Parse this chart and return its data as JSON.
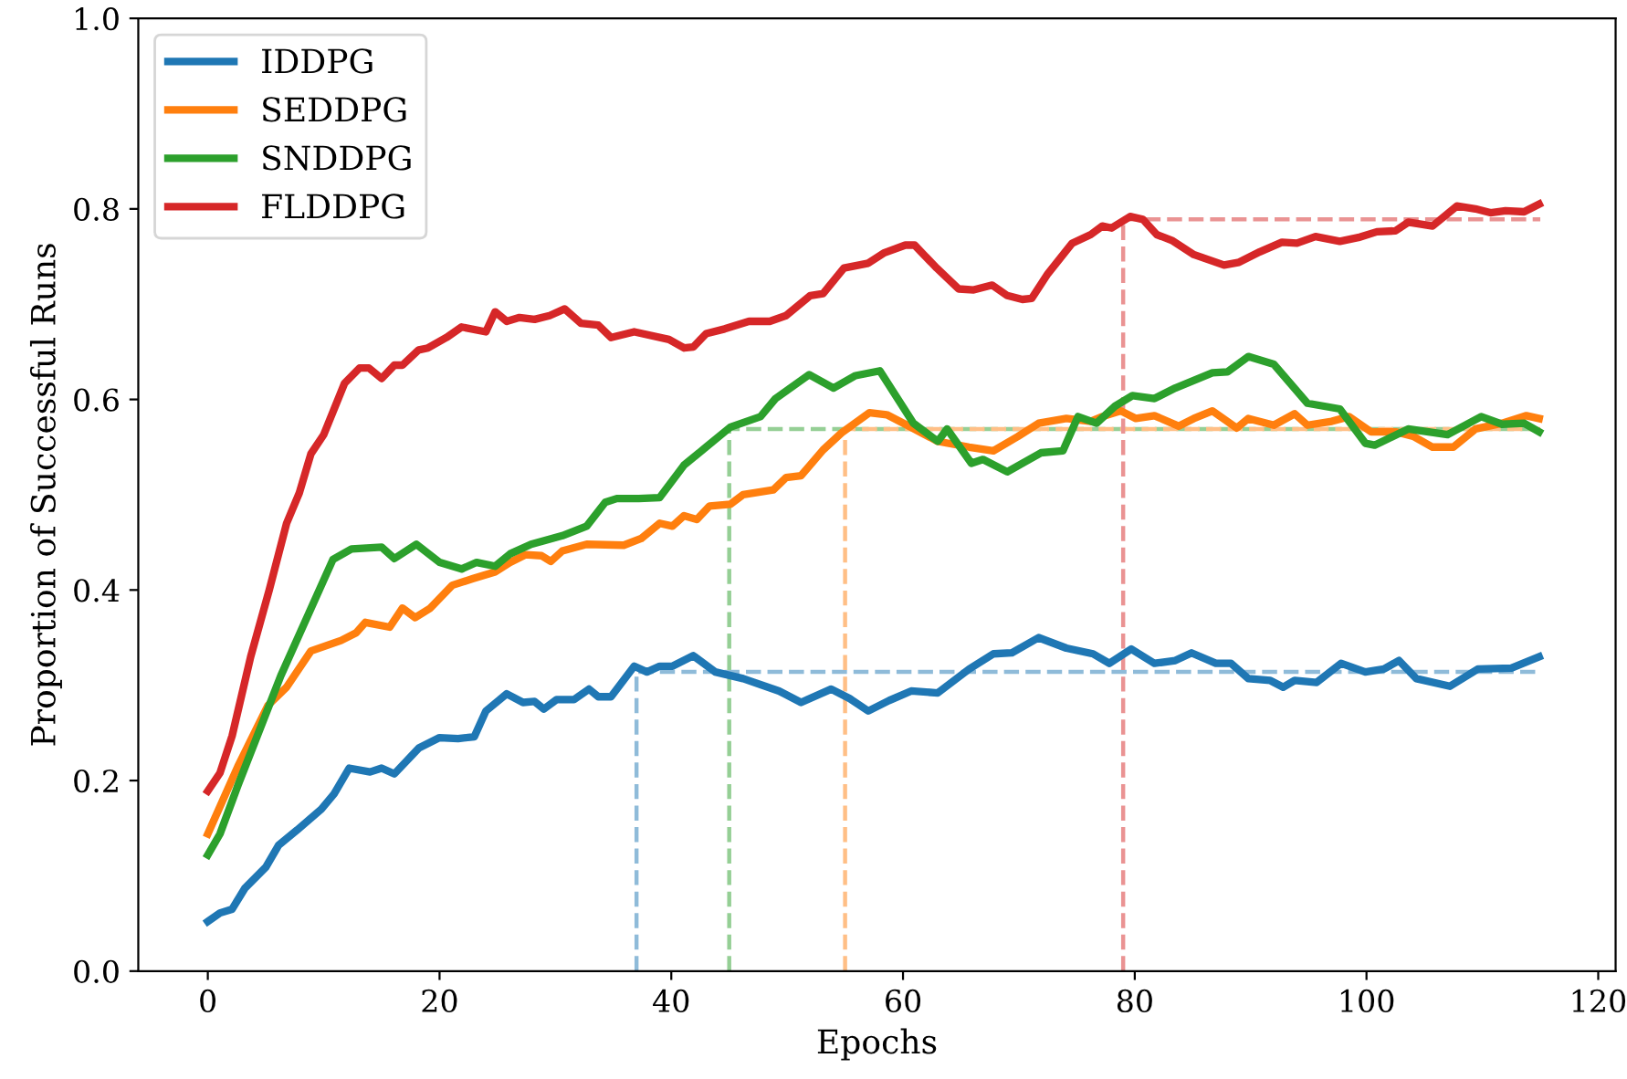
{
  "chart_data": {
    "type": "line",
    "xlabel": "Epochs",
    "ylabel": "Proportion of Successful Runs",
    "xlim": [
      -6,
      121.5
    ],
    "ylim": [
      0,
      1
    ],
    "xticks": [
      0,
      20,
      40,
      60,
      80,
      100,
      120
    ],
    "yticks": [
      {
        "value": 0,
        "label": "0.0"
      },
      0.2,
      0.4,
      0.6,
      0.8,
      {
        "value": 1,
        "label": "1.0"
      }
    ],
    "grid": false,
    "legend": "top left",
    "line_style": "solid",
    "marker": "none",
    "series": [
      {
        "name": "IDDPG",
        "color": "#1f77b4",
        "x": [
          0,
          1.05,
          2.1,
          3.2,
          5,
          6.1,
          7.7,
          9.8,
          10.9,
          12.2,
          14,
          15,
          16.1,
          18.2,
          20,
          21.6,
          23,
          24,
          25.8,
          27.2,
          28.2,
          29,
          30.1,
          31.6,
          32.9,
          33.7,
          34.8,
          36.8,
          37.9,
          39,
          40.1,
          41.9,
          43.8,
          46.2,
          49.3,
          51.2,
          53.8,
          55.4,
          57,
          58.8,
          60.7,
          63,
          65.7,
          67.8,
          69.4,
          71.7,
          74.1,
          76.4,
          77.8,
          79.7,
          81.7,
          83.5,
          84.9,
          87,
          88.3,
          89.8,
          91.7,
          92.8,
          93.8,
          95.7,
          97.8,
          99.9,
          101.5,
          102.8,
          104.3,
          107.2,
          109.6,
          112.5,
          114.9
        ],
        "values": [
          0.052,
          0.061,
          0.065,
          0.087,
          0.109,
          0.132,
          0.148,
          0.17,
          0.186,
          0.213,
          0.209,
          0.213,
          0.207,
          0.234,
          0.245,
          0.244,
          0.246,
          0.273,
          0.291,
          0.282,
          0.283,
          0.275,
          0.285,
          0.285,
          0.296,
          0.288,
          0.288,
          0.32,
          0.314,
          0.32,
          0.32,
          0.331,
          0.314,
          0.307,
          0.294,
          0.282,
          0.296,
          0.286,
          0.273,
          0.284,
          0.294,
          0.292,
          0.317,
          0.333,
          0.334,
          0.35,
          0.339,
          0.333,
          0.323,
          0.338,
          0.323,
          0.326,
          0.334,
          0.323,
          0.323,
          0.307,
          0.305,
          0.298,
          0.305,
          0.303,
          0.323,
          0.314,
          0.317,
          0.326,
          0.307,
          0.299,
          0.317,
          0.318,
          0.33
        ]
      },
      {
        "name": "SEDDPG",
        "color": "#ff7f0e",
        "x": [
          0,
          2.6,
          5.2,
          6.8,
          8.9,
          11.5,
          12.8,
          13.6,
          15.7,
          16.8,
          17.9,
          19.2,
          21.1,
          22.9,
          24.8,
          26.1,
          27.4,
          28.8,
          29.6,
          30.6,
          32.7,
          35.9,
          37.4,
          39,
          40.1,
          41.1,
          42.2,
          43.3,
          45.1,
          46.2,
          48.8,
          49.9,
          51.2,
          53.1,
          54.7,
          57.1,
          58.6,
          60.5,
          63,
          65.7,
          67.8,
          69.9,
          71.7,
          74.1,
          76.2,
          77.2,
          78.8,
          80.1,
          81.7,
          83.8,
          85.1,
          86.7,
          88.8,
          89.8,
          92,
          93.8,
          94.9,
          97,
          98.5,
          100.4,
          102.5,
          104.1,
          105.7,
          107.5,
          109.4,
          111.7,
          113.8,
          114.9
        ],
        "values": [
          0.144,
          0.215,
          0.279,
          0.298,
          0.336,
          0.347,
          0.355,
          0.366,
          0.361,
          0.381,
          0.371,
          0.381,
          0.405,
          0.412,
          0.419,
          0.429,
          0.437,
          0.436,
          0.43,
          0.441,
          0.448,
          0.447,
          0.454,
          0.47,
          0.467,
          0.478,
          0.474,
          0.488,
          0.49,
          0.5,
          0.505,
          0.518,
          0.52,
          0.547,
          0.565,
          0.586,
          0.584,
          0.572,
          0.556,
          0.55,
          0.546,
          0.561,
          0.575,
          0.58,
          0.577,
          0.582,
          0.588,
          0.58,
          0.583,
          0.572,
          0.58,
          0.588,
          0.57,
          0.58,
          0.573,
          0.585,
          0.573,
          0.577,
          0.582,
          0.566,
          0.566,
          0.561,
          0.55,
          0.55,
          0.569,
          0.575,
          0.583,
          0.58
        ]
      },
      {
        "name": "SNDDPG",
        "color": "#2ca02c",
        "x": [
          0,
          1.05,
          2.6,
          6.3,
          10.8,
          12.4,
          15,
          16.1,
          18,
          20,
          21.9,
          23.2,
          24.8,
          26.1,
          27.9,
          30.6,
          32.7,
          34.3,
          35.3,
          37.2,
          39,
          41.1,
          43,
          45.1,
          47.7,
          49,
          51.9,
          54,
          55.9,
          58,
          60.9,
          63,
          63.8,
          65.9,
          66.9,
          69,
          71.9,
          73.8,
          75.1,
          76.7,
          78.3,
          79.8,
          81.7,
          83.5,
          86.7,
          88,
          89.8,
          92,
          94.9,
          97.7,
          99.9,
          100.7,
          103.6,
          107,
          109.9,
          111.7,
          113.6,
          114.9
        ],
        "values": [
          0.122,
          0.144,
          0.195,
          0.31,
          0.432,
          0.443,
          0.445,
          0.433,
          0.448,
          0.429,
          0.422,
          0.429,
          0.425,
          0.438,
          0.448,
          0.457,
          0.467,
          0.492,
          0.496,
          0.496,
          0.497,
          0.531,
          0.55,
          0.571,
          0.582,
          0.601,
          0.626,
          0.612,
          0.625,
          0.63,
          0.575,
          0.556,
          0.569,
          0.533,
          0.537,
          0.524,
          0.544,
          0.546,
          0.582,
          0.575,
          0.593,
          0.604,
          0.601,
          0.612,
          0.628,
          0.629,
          0.645,
          0.637,
          0.596,
          0.59,
          0.554,
          0.552,
          0.569,
          0.563,
          0.582,
          0.574,
          0.575,
          0.566
        ]
      },
      {
        "name": "FLDDPG",
        "color": "#d62728",
        "x": [
          0,
          1.05,
          2.1,
          3.7,
          5.3,
          6.8,
          7.9,
          8.9,
          10,
          11.8,
          13.1,
          13.9,
          15,
          16.1,
          16.8,
          18.2,
          19,
          20.6,
          21.9,
          24,
          24.8,
          25.8,
          26.9,
          28.2,
          29.5,
          30.8,
          32.2,
          33.7,
          34.8,
          36.8,
          39.8,
          41.1,
          41.9,
          43,
          44.6,
          46.7,
          48.5,
          49.9,
          52,
          53.1,
          54.9,
          57,
          58.4,
          60.2,
          61,
          62.9,
          64.8,
          66.1,
          67.7,
          69,
          70.3,
          71.1,
          72.5,
          74.6,
          76.2,
          77.2,
          78,
          79.6,
          80.7,
          81.9,
          83.2,
          85.1,
          87.7,
          89,
          90.8,
          92.7,
          94,
          95.6,
          97.7,
          99.3,
          100.9,
          102.5,
          103.6,
          105.7,
          107.8,
          109.4,
          110.7,
          112,
          113.6,
          114.9
        ],
        "values": [
          0.189,
          0.208,
          0.247,
          0.33,
          0.4,
          0.47,
          0.502,
          0.543,
          0.563,
          0.617,
          0.633,
          0.633,
          0.622,
          0.636,
          0.636,
          0.652,
          0.654,
          0.665,
          0.676,
          0.671,
          0.692,
          0.682,
          0.686,
          0.684,
          0.688,
          0.695,
          0.68,
          0.678,
          0.665,
          0.671,
          0.663,
          0.654,
          0.655,
          0.669,
          0.674,
          0.682,
          0.682,
          0.688,
          0.709,
          0.711,
          0.738,
          0.743,
          0.754,
          0.762,
          0.762,
          0.738,
          0.716,
          0.715,
          0.72,
          0.709,
          0.705,
          0.706,
          0.732,
          0.764,
          0.773,
          0.782,
          0.78,
          0.792,
          0.789,
          0.773,
          0.767,
          0.752,
          0.741,
          0.744,
          0.755,
          0.765,
          0.764,
          0.771,
          0.766,
          0.77,
          0.776,
          0.777,
          0.786,
          0.782,
          0.803,
          0.8,
          0.796,
          0.798,
          0.797,
          0.805
        ]
      },
      {
        "color": "#8fbbd9",
        "line_style": "dashed",
        "x": [
          37,
          37,
          115
        ],
        "values": [
          0,
          0.314,
          0.314
        ]
      },
      {
        "color": "#95cf95",
        "line_style": "dashed",
        "x": [
          45,
          45,
          115
        ],
        "values": [
          0,
          0.569,
          0.569
        ]
      },
      {
        "color": "#ffbf86",
        "line_style": "dashed",
        "x": [
          55,
          55,
          115
        ],
        "values": [
          0,
          0.569,
          0.569
        ]
      },
      {
        "color": "#ea9393",
        "line_style": "dashed",
        "x": [
          79,
          79,
          115
        ],
        "values": [
          0,
          0.789,
          0.789
        ]
      }
    ]
  }
}
